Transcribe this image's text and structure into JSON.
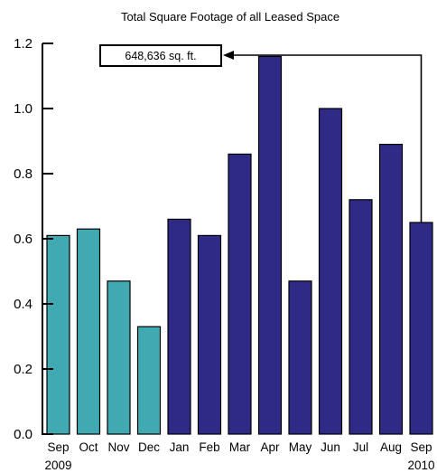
{
  "chart_data": {
    "type": "bar",
    "title": "Total Square Footage of all Leased Space",
    "xlabel": "",
    "ylabel": "",
    "categories": [
      "Sep",
      "Oct",
      "Nov",
      "Dec",
      "Jan",
      "Feb",
      "Mar",
      "Apr",
      "May",
      "Jun",
      "Jul",
      "Aug",
      "Sep"
    ],
    "year_labels": [
      {
        "index": 0,
        "text": "2009"
      },
      {
        "index": 12,
        "text": "2010"
      }
    ],
    "values": [
      0.61,
      0.63,
      0.47,
      0.33,
      0.66,
      0.61,
      0.86,
      1.16,
      0.47,
      1.0,
      0.72,
      0.89,
      0.65
    ],
    "bar_colors": [
      "#40a9b1",
      "#40a9b1",
      "#40a9b1",
      "#40a9b1",
      "#2e2a86",
      "#2e2a86",
      "#2e2a86",
      "#2e2a86",
      "#2e2a86",
      "#2e2a86",
      "#2e2a86",
      "#2e2a86",
      "#2e2a86"
    ],
    "ylim": [
      0,
      1.2
    ],
    "yticks": [
      "0.0",
      "0.2",
      "0.4",
      "0.6",
      "0.8",
      "1.0",
      "1.2"
    ],
    "grid": false,
    "annotation": {
      "text": "648,636 sq. ft.",
      "points_to_index": 12
    }
  }
}
